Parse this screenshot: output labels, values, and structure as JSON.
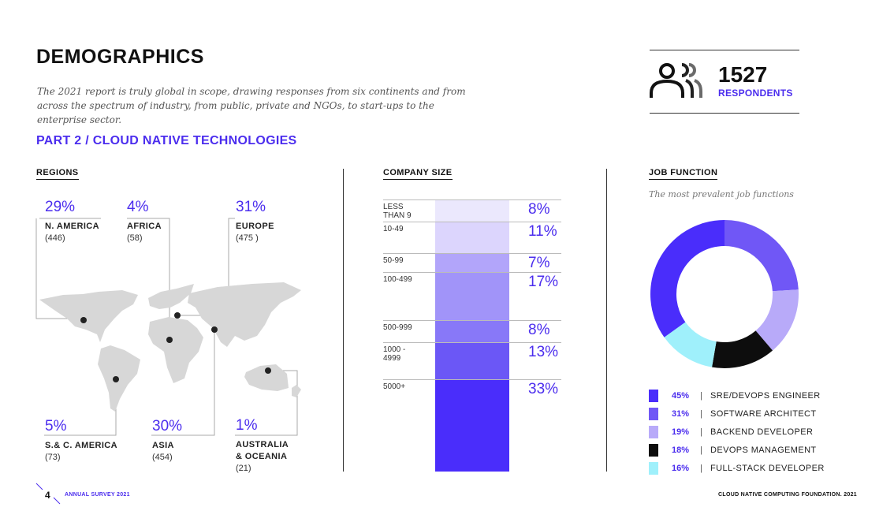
{
  "header": {
    "title": "DEMOGRAPHICS",
    "intro": "The 2021 report is truly global in scope, drawing responses from six continents and from across the spectrum of industry, from public, private and NGOs, to start-ups to the enterprise sector.",
    "part": "PART 2 / CLOUD NATIVE TECHNOLOGIES"
  },
  "respondents": {
    "count": "1527",
    "label": "RESPONDENTS",
    "icon": "people-icon"
  },
  "regions": {
    "heading": "REGIONS",
    "items": [
      {
        "pct": "29%",
        "name": "N. AMERICA",
        "count": "(446)"
      },
      {
        "pct": "4%",
        "name": "AFRICA",
        "count": "(58)"
      },
      {
        "pct": "31%",
        "name": "EUROPE",
        "count": "(475 )"
      },
      {
        "pct": "5%",
        "name": "S.& C. AMERICA",
        "count": "(73)"
      },
      {
        "pct": "30%",
        "name": "ASIA",
        "count": "(454)"
      },
      {
        "pct": "1%",
        "name_line1": "AUSTRALIA",
        "name_line2": "& OCEANIA",
        "count": "(21)"
      }
    ]
  },
  "company_size": {
    "heading": "COMPANY SIZE",
    "rows": [
      {
        "label_line1": "LESS",
        "label_line2": "THAN 9",
        "pct": "8%"
      },
      {
        "label_line1": "10-49",
        "label_line2": "",
        "pct": "11%"
      },
      {
        "label_line1": "50-99",
        "label_line2": "",
        "pct": "7%"
      },
      {
        "label_line1": "100-499",
        "label_line2": "",
        "pct": "17%"
      },
      {
        "label_line1": "500-999",
        "label_line2": "",
        "pct": "8%"
      },
      {
        "label_line1": "1000 -",
        "label_line2": "4999",
        "pct": "13%"
      },
      {
        "label_line1": "5000+",
        "label_line2": "",
        "pct": "33%"
      }
    ]
  },
  "job_function": {
    "heading": "JOB FUNCTION",
    "subtitle": "The most prevalent job functions",
    "legend": [
      {
        "pct": "45%",
        "sep": "|",
        "name": "SRE/DEVOPS ENGINEER"
      },
      {
        "pct": "31%",
        "sep": "|",
        "name": "SOFTWARE ARCHITECT"
      },
      {
        "pct": "19%",
        "sep": "|",
        "name": "BACKEND DEVELOPER"
      },
      {
        "pct": "18%",
        "sep": "|",
        "name": "DEVOPS MANAGEMENT"
      },
      {
        "pct": "16%",
        "sep": "|",
        "name": "FULL-STACK DEVELOPER"
      }
    ]
  },
  "chart_data": [
    {
      "type": "bar",
      "title": "COMPANY SIZE",
      "categories": [
        "LESS THAN 9",
        "10-49",
        "50-99",
        "100-499",
        "500-999",
        "1000 - 4999",
        "5000+"
      ],
      "values": [
        8,
        11,
        7,
        17,
        8,
        13,
        33
      ],
      "colors": [
        "#ebe8fd",
        "#dcd5fd",
        "#b2a5fa",
        "#a194f9",
        "#8878f8",
        "#6b57f6",
        "#4a2dfb"
      ]
    },
    {
      "type": "pie",
      "title": "JOB FUNCTION",
      "categories": [
        "SRE/DEVOPS ENGINEER",
        "SOFTWARE ARCHITECT",
        "BACKEND DEVELOPER",
        "DEVOPS MANAGEMENT",
        "FULL-STACK DEVELOPER"
      ],
      "values": [
        45,
        31,
        19,
        18,
        16
      ],
      "colors": [
        "#4a2dfb",
        "#7057f6",
        "#b8aaf9",
        "#0d0d0d",
        "#9ff0fb"
      ]
    }
  ],
  "footer": {
    "page": "4",
    "left": "ANNUAL SURVEY 2021",
    "right": "CLOUD NATIVE COMPUTING FOUNDATION. 2021"
  }
}
